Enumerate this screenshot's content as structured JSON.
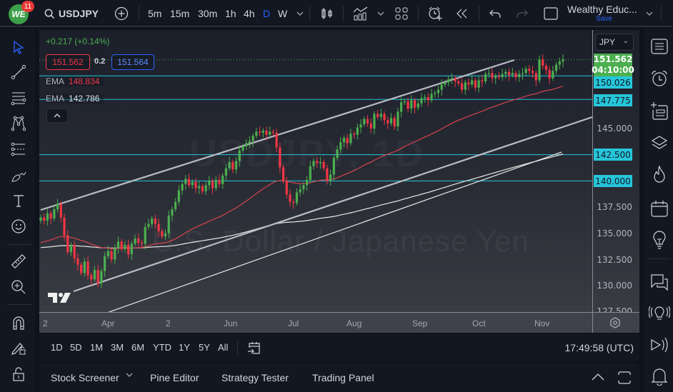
{
  "topbar": {
    "notification_count": "11",
    "logo_text": "WE",
    "symbol": "USDJPY",
    "timeframes": [
      "5m",
      "15m",
      "30m",
      "1h",
      "4h",
      "D",
      "W"
    ],
    "active_timeframe": "D",
    "layout_name": "Wealthy Educ...",
    "save_label": "Save"
  },
  "legend": {
    "change": "+0.217 (+0.14%)",
    "bid": "151.562",
    "spread": "0.2",
    "ask": "151.564",
    "ema1_label": "EMA",
    "ema1_value": "148.834",
    "ema2_label": "EMA",
    "ema2_value": "142.786",
    "collapse_glyph": "^"
  },
  "watermark": {
    "line1": "USDJPY, 1D",
    "line2": "U.S. Dollar / Japanese Yen"
  },
  "price_axis": {
    "currency": "JPY",
    "current_price": "151.562",
    "countdown": "04:10:00",
    "tagged_levels": [
      "150.026",
      "147.775",
      "142.500",
      "140.000"
    ],
    "ticks": [
      "145.000",
      "137.500",
      "135.000",
      "132.500",
      "130.000",
      "127.500"
    ]
  },
  "time_axis": {
    "labels": [
      "2",
      "Apr",
      "2",
      "Jun",
      "Jul",
      "Aug",
      "Sep",
      "Oct",
      "Nov"
    ]
  },
  "range_bar": {
    "ranges": [
      "1D",
      "5D",
      "1M",
      "3M",
      "6M",
      "YTD",
      "1Y",
      "5Y",
      "All"
    ],
    "clock": "17:49:58 (UTC)"
  },
  "bottom_bar": {
    "tabs": [
      "Stock Screener",
      "Pine Editor",
      "Strategy Tester",
      "Trading Panel"
    ]
  },
  "colors": {
    "up": "#4caf50",
    "down": "#f23645",
    "level_line": "#26c6da",
    "ema_fast": "#d9434f",
    "ema_slow": "#e8e8e8",
    "channel": "#b9bcc4",
    "accent": "#2962ff"
  },
  "chart_data": {
    "type": "candlestick",
    "title": "USDJPY, 1D",
    "subtitle": "U.S. Dollar / Japanese Yen",
    "ylim": [
      127.5,
      152.5
    ],
    "y_ticks": [
      127.5,
      130,
      132.5,
      135,
      137.5,
      140,
      142.5,
      145,
      147.5,
      150
    ],
    "x_labels": [
      "2",
      "Apr",
      "2",
      "Jun",
      "Jul",
      "Aug",
      "Sep",
      "Oct",
      "Nov"
    ],
    "horizontal_levels": [
      150.026,
      147.775,
      142.5,
      140.0
    ],
    "last_price": 151.562,
    "ema_values_at_last": {
      "ema_fast": 148.834,
      "ema_slow": 142.786
    },
    "closes": [
      136.5,
      136.2,
      136.9,
      136.4,
      137.3,
      137.8,
      136.5,
      134.8,
      133.2,
      133.9,
      132.6,
      132.0,
      131.2,
      132.3,
      131.0,
      130.6,
      131.5,
      130.2,
      131.4,
      132.8,
      133.3,
      132.5,
      133.6,
      134.2,
      133.5,
      133.9,
      133.0,
      134.0,
      134.5,
      134.1,
      134.0,
      135.6,
      135.9,
      136.4,
      135.9,
      135.2,
      134.7,
      135.0,
      136.7,
      137.3,
      138.0,
      139.1,
      139.7,
      140.2,
      139.6,
      139.9,
      139.3,
      139.5,
      139.0,
      139.6,
      140.0,
      139.3,
      140.1,
      139.7,
      140.5,
      141.2,
      141.8,
      141.1,
      141.9,
      142.9,
      143.3,
      143.6,
      143.8,
      144.3,
      144.7,
      144.6,
      144.8,
      144.4,
      144.7,
      144.6,
      143.2,
      141.3,
      140.0,
      138.7,
      138.0,
      137.9,
      138.9,
      139.2,
      139.6,
      140.1,
      141.4,
      141.9,
      141.7,
      141.8,
      141.2,
      140.0,
      140.6,
      142.2,
      143.0,
      143.7,
      144.1,
      143.6,
      144.5,
      144.4,
      145.1,
      145.4,
      145.9,
      145.5,
      145.0,
      146.4,
      146.1,
      146.4,
      145.8,
      145.5,
      146.0,
      145.2,
      146.6,
      147.5,
      147.6,
      146.9,
      147.7,
      147.0,
      147.4,
      147.9,
      148.0,
      147.7,
      148.3,
      148.4,
      148.7,
      149.2,
      149.4,
      149.7,
      149.8,
      149.5,
      149.3,
      148.7,
      149.4,
      149.2,
      149.6,
      148.9,
      149.6,
      149.5,
      150.2,
      150.3,
      149.8,
      150.0,
      149.9,
      150.2,
      150.4,
      150.1,
      150.3,
      149.9,
      150.2,
      150.3,
      150.7,
      150.5,
      150.3,
      149.6,
      151.6,
      151.0,
      150.6,
      149.8,
      150.5,
      151.1,
      151.4,
      151.6
    ]
  }
}
